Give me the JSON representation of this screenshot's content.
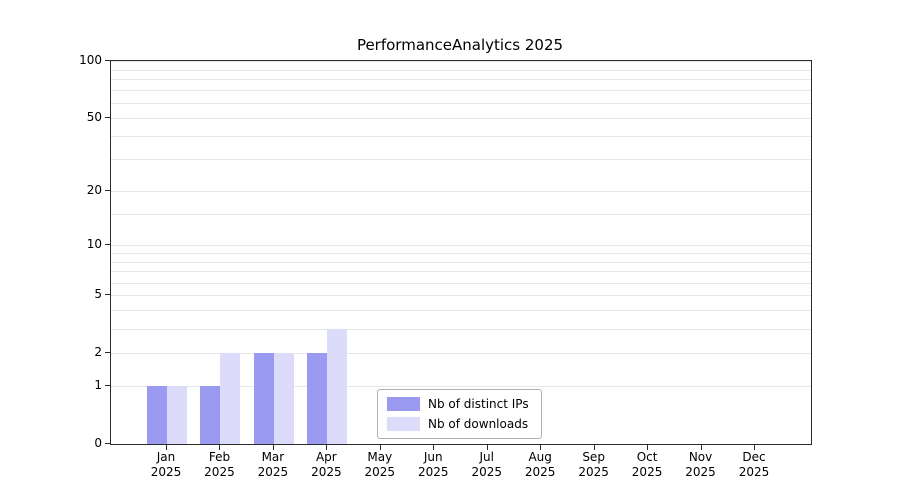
{
  "chart_data": {
    "type": "bar",
    "title": "PerformanceAnalytics 2025",
    "categories": [
      "Jan",
      "Feb",
      "Mar",
      "Apr",
      "May",
      "Jun",
      "Jul",
      "Aug",
      "Sep",
      "Oct",
      "Nov",
      "Dec"
    ],
    "year_label": "2025",
    "series": [
      {
        "name": "Nb of distinct IPs",
        "color": "#9a9af0",
        "values": [
          1,
          1,
          2,
          2,
          0,
          0,
          0,
          0,
          0,
          0,
          0,
          0
        ]
      },
      {
        "name": "Nb of downloads",
        "color": "#dcdcfa",
        "values": [
          1,
          2,
          2,
          3,
          0,
          0,
          0,
          0,
          0,
          0,
          0,
          0
        ]
      }
    ],
    "y_ticks": [
      0,
      1,
      2,
      5,
      10,
      20,
      50,
      100
    ],
    "y_tick_labels": [
      "0",
      "1",
      "2",
      "5",
      "10",
      "20",
      "50",
      "100"
    ],
    "y_scale": "log1p",
    "ylim": [
      0,
      100
    ],
    "grid_values": [
      1,
      2,
      3,
      4,
      5,
      6,
      7,
      8,
      9,
      10,
      15,
      20,
      30,
      40,
      50,
      60,
      70,
      80,
      90,
      100
    ],
    "grid": "horizontal",
    "legend_position": "inside-bottom-center",
    "colors": {
      "grid": "#e7e7e7",
      "axis": "#2b2b2b",
      "background": "#ffffff"
    }
  }
}
